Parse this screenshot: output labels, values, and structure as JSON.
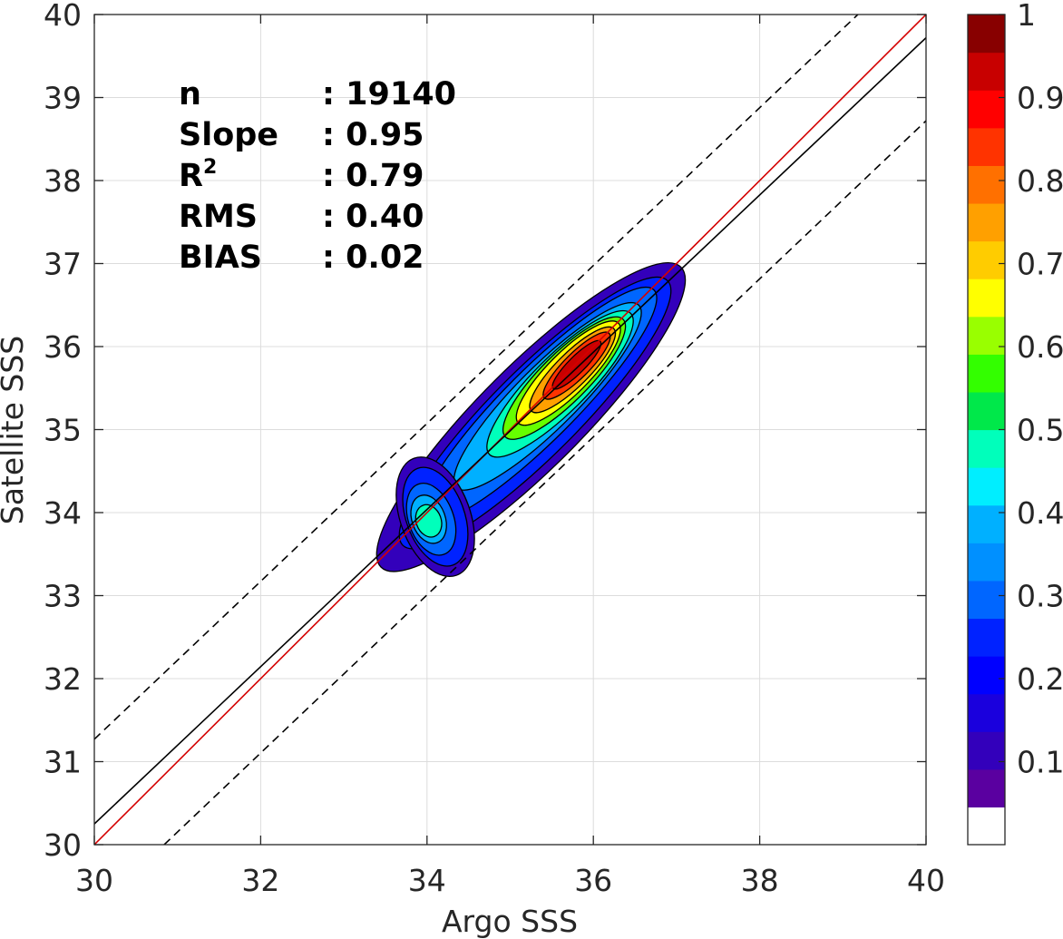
{
  "chart_data": {
    "type": "contour",
    "xlabel": "Argo SSS",
    "ylabel": "Satellite SSS",
    "xlim": [
      30,
      40
    ],
    "ylim": [
      30,
      40
    ],
    "xticks": [
      "30",
      "32",
      "34",
      "36",
      "38",
      "40"
    ],
    "yticks": [
      "30",
      "31",
      "32",
      "33",
      "34",
      "35",
      "36",
      "37",
      "38",
      "39",
      "40"
    ],
    "grid": true,
    "stats": [
      {
        "label": "n",
        "value": ": 19140"
      },
      {
        "label": "Slope",
        "value": ": 0.95"
      },
      {
        "label": "R",
        "sup": "2",
        "value": ": 0.79"
      },
      {
        "label": "RMS",
        "value": ": 0.40"
      },
      {
        "label": "BIAS",
        "value": ": 0.02"
      }
    ],
    "lines": [
      {
        "kind": "one-to-one",
        "color": "#d40000",
        "style": "solid",
        "slope": 1,
        "intercept": 0
      },
      {
        "kind": "regression",
        "color": "#000000",
        "style": "solid",
        "x": [
          30,
          40
        ],
        "y": [
          30.25,
          39.72
        ]
      },
      {
        "kind": "upper-bound",
        "color": "#000000",
        "style": "dashed",
        "x": [
          30,
          39.18
        ],
        "y": [
          31.27,
          40
        ]
      },
      {
        "kind": "lower-bound",
        "color": "#000000",
        "style": "dashed",
        "x": [
          30.84,
          40
        ],
        "y": [
          30,
          38.72
        ]
      }
    ],
    "density_contours": [
      {
        "level": 0.05,
        "color": "#3300bb",
        "center": [
          35.25,
          35.15
        ],
        "semi_major": 2.55,
        "semi_minor": 0.62,
        "angle": 45
      },
      {
        "level": 0.15,
        "color": "#0022ff",
        "center": [
          35.3,
          35.2
        ],
        "semi_major": 2.25,
        "semi_minor": 0.52,
        "angle": 45
      },
      {
        "level": 0.25,
        "color": "#0066ff",
        "center": [
          35.35,
          35.3
        ],
        "semi_major": 1.95,
        "semi_minor": 0.43,
        "angle": 45
      },
      {
        "level": 0.35,
        "color": "#00b0ff",
        "center": [
          35.45,
          35.4
        ],
        "semi_major": 1.55,
        "semi_minor": 0.37,
        "angle": 45
      },
      {
        "level": 0.45,
        "color": "#00ffbb",
        "center": [
          35.6,
          35.55
        ],
        "semi_major": 1.2,
        "semi_minor": 0.33,
        "angle": 45
      },
      {
        "level": 0.55,
        "color": "#66ff00",
        "center": [
          35.65,
          35.62
        ],
        "semi_major": 1.0,
        "semi_minor": 0.29,
        "angle": 45
      },
      {
        "level": 0.65,
        "color": "#ffff00",
        "center": [
          35.7,
          35.68
        ],
        "semi_major": 0.85,
        "semi_minor": 0.25,
        "angle": 45
      },
      {
        "level": 0.75,
        "color": "#ffa000",
        "center": [
          35.75,
          35.72
        ],
        "semi_major": 0.7,
        "semi_minor": 0.2,
        "angle": 45
      },
      {
        "level": 0.85,
        "color": "#ff3300",
        "center": [
          35.8,
          35.77
        ],
        "semi_major": 0.55,
        "semi_minor": 0.15,
        "angle": 45
      },
      {
        "level": 0.95,
        "color": "#c80000",
        "center": [
          35.8,
          35.78
        ],
        "semi_major": 0.4,
        "semi_minor": 0.1,
        "angle": 45
      }
    ],
    "secondary_blob": [
      {
        "level": 0.05,
        "color": "#3300bb",
        "center": [
          34.1,
          33.95
        ],
        "rx": 0.42,
        "ry": 0.75
      },
      {
        "level": 0.15,
        "color": "#0022ff",
        "center": [
          34.1,
          33.95
        ],
        "rx": 0.35,
        "ry": 0.62
      },
      {
        "level": 0.25,
        "color": "#0066ff",
        "center": [
          34.05,
          33.92
        ],
        "rx": 0.27,
        "ry": 0.45
      },
      {
        "level": 0.35,
        "color": "#00b0ff",
        "center": [
          34.02,
          33.92
        ],
        "rx": 0.2,
        "ry": 0.3
      },
      {
        "level": 0.45,
        "color": "#00ffbb",
        "center": [
          34.02,
          33.9
        ],
        "rx": 0.15,
        "ry": 0.2
      }
    ],
    "colorbar": {
      "min": 0,
      "max": 1,
      "ticks": [
        "0.1",
        "0.2",
        "0.3",
        "0.4",
        "0.5",
        "0.6",
        "0.7",
        "0.8",
        "0.9",
        "1"
      ],
      "tick_values": [
        0.1,
        0.2,
        0.3,
        0.4,
        0.5,
        0.6,
        0.7,
        0.8,
        0.9,
        1
      ],
      "colors": [
        "#ffffff",
        "#5a00a0",
        "#3300bb",
        "#1a00dd",
        "#0000ff",
        "#0022ff",
        "#0066ff",
        "#0090ff",
        "#00b0ff",
        "#00eeff",
        "#00ffbb",
        "#00e84a",
        "#33ff00",
        "#99ff00",
        "#ffff00",
        "#ffcc00",
        "#ffa000",
        "#ff7000",
        "#ff3300",
        "#ff0000",
        "#c80000",
        "#880000"
      ]
    }
  }
}
